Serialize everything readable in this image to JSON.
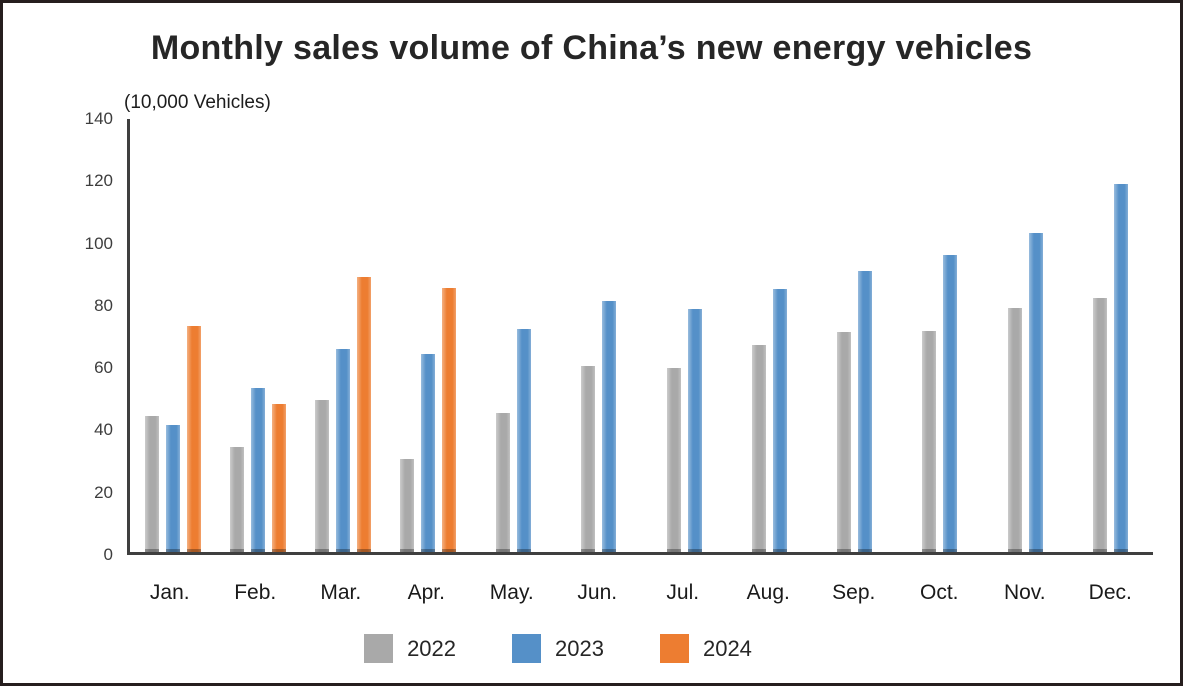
{
  "chart_data": {
    "type": "bar",
    "title": "Monthly sales volume of China’s new energy vehicles",
    "unit_label": "(10,000 Vehicles)",
    "xlabel": "",
    "ylabel": "(10,000 Vehicles)",
    "categories": [
      "Jan.",
      "Feb.",
      "Mar.",
      "Apr.",
      "May.",
      "Jun.",
      "Jul.",
      "Aug.",
      "Sep.",
      "Oct.",
      "Nov.",
      "Dec."
    ],
    "series": [
      {
        "name": "2022",
        "color": "#a9a9a9",
        "values": [
          44,
          34,
          49,
          30,
          45,
          60,
          59.5,
          67,
          71,
          71.5,
          79,
          82
        ]
      },
      {
        "name": "2023",
        "color": "#5590c8",
        "values": [
          41,
          53,
          65.5,
          64,
          72,
          81,
          78.5,
          85,
          91,
          96,
          103,
          119
        ]
      },
      {
        "name": "2024",
        "color": "#ed7d31",
        "values": [
          73,
          48,
          89,
          85.5,
          null,
          null,
          null,
          null,
          null,
          null,
          null,
          null
        ]
      }
    ],
    "ylim": [
      0,
      140
    ],
    "yticks": [
      0,
      20,
      40,
      60,
      80,
      100,
      120,
      140
    ],
    "grid": false,
    "legend_position": "bottom"
  },
  "colors": {
    "axis": "#3f3f3f",
    "frame_border": "#261e1e",
    "title_text": "#262626"
  }
}
